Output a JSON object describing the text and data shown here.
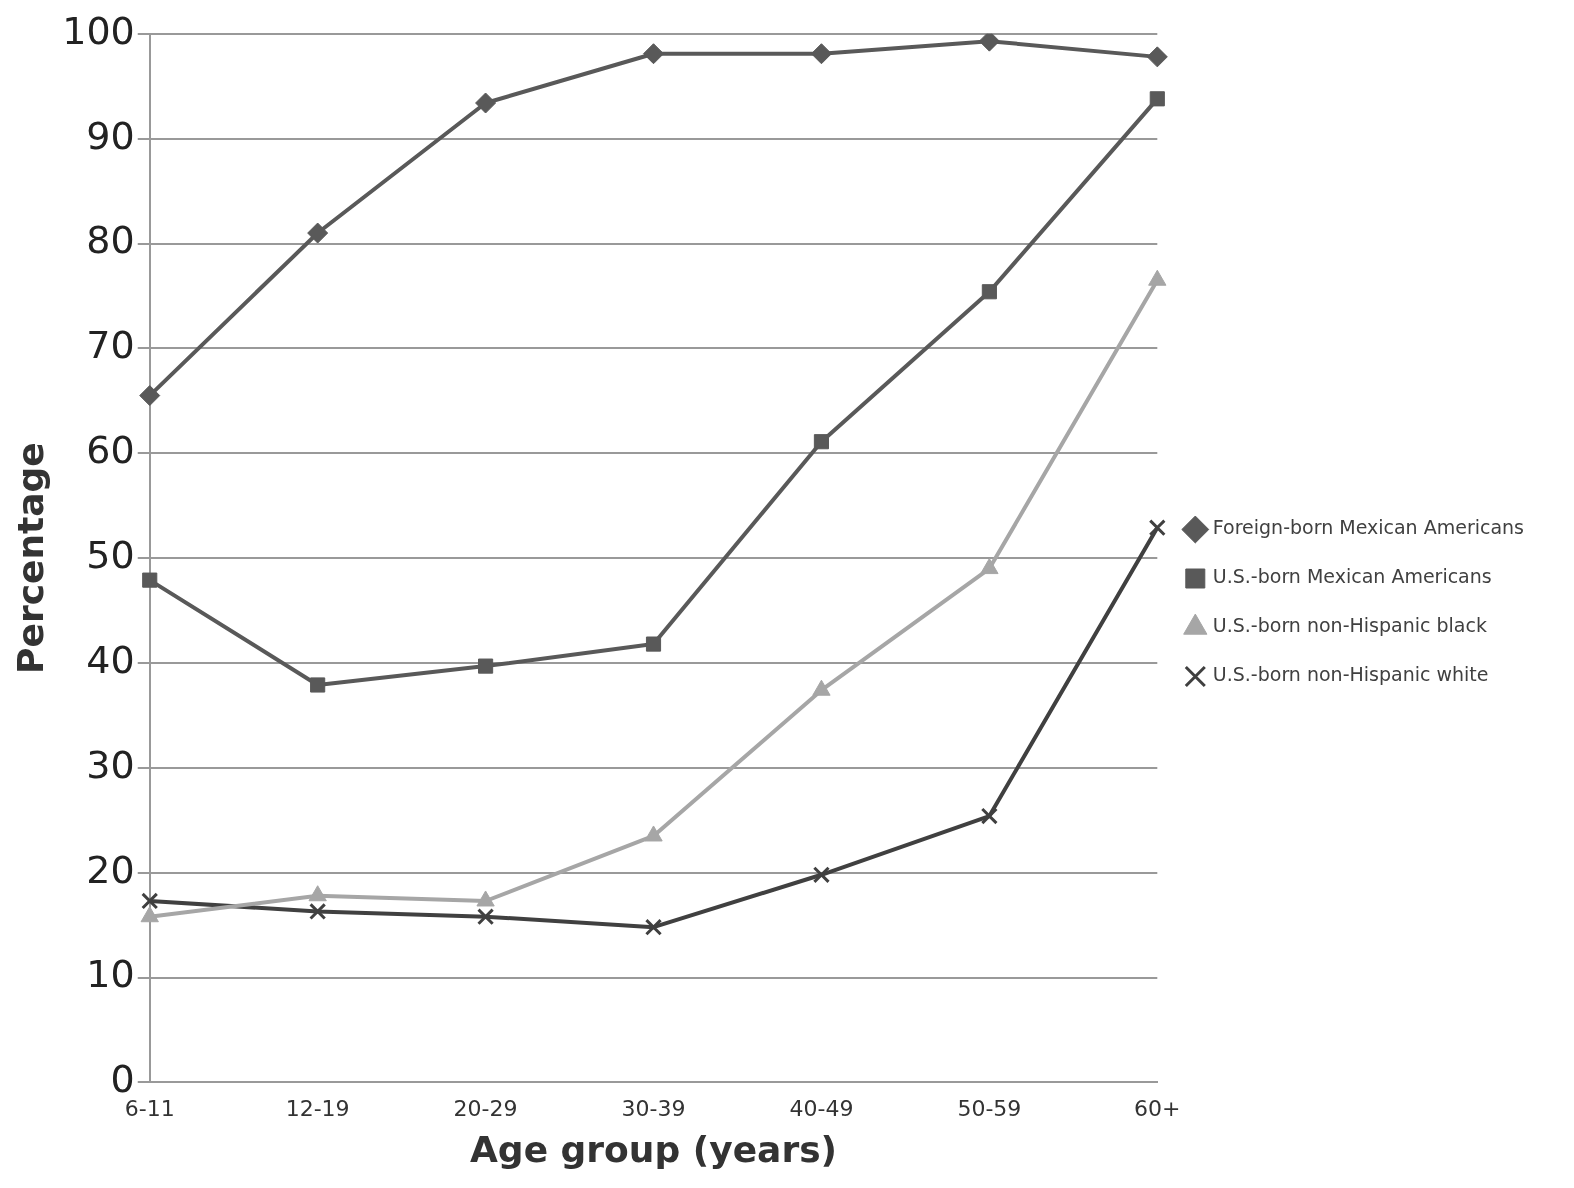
{
  "chart_data": {
    "type": "line",
    "xlabel": "Age group (years)",
    "ylabel": "Percentage",
    "categories": [
      "6-11",
      "12-19",
      "20-29",
      "30-39",
      "40-49",
      "50-59",
      "60+"
    ],
    "ylim": [
      0,
      100
    ],
    "yticks": [
      0,
      10,
      20,
      30,
      40,
      50,
      60,
      70,
      80,
      90,
      100
    ],
    "grid": "y",
    "legend": "right",
    "line_style": "solid",
    "series": [
      {
        "name": "Foreign-born Mexican Americans",
        "color": "#595959",
        "marker": "diamond",
        "values": [
          65.5,
          81,
          93.4,
          98.1,
          98.1,
          99.3,
          97.8
        ]
      },
      {
        "name": "U.S.-born Mexican Americans",
        "color": "#595959",
        "marker": "square",
        "values": [
          47.9,
          37.9,
          39.7,
          41.8,
          61.1,
          75.4,
          93.8
        ]
      },
      {
        "name": "U.S.-born non-Hispanic black",
        "color": "#a6a6a6",
        "marker": "triangle",
        "values": [
          15.8,
          17.8,
          17.3,
          23.5,
          37.4,
          49,
          76.5
        ]
      },
      {
        "name": "U.S.-born non-Hispanic white",
        "color": "#404040",
        "marker": "cross",
        "values": [
          17.3,
          16.3,
          15.8,
          14.8,
          19.8,
          25.4,
          52.9
        ]
      }
    ]
  }
}
